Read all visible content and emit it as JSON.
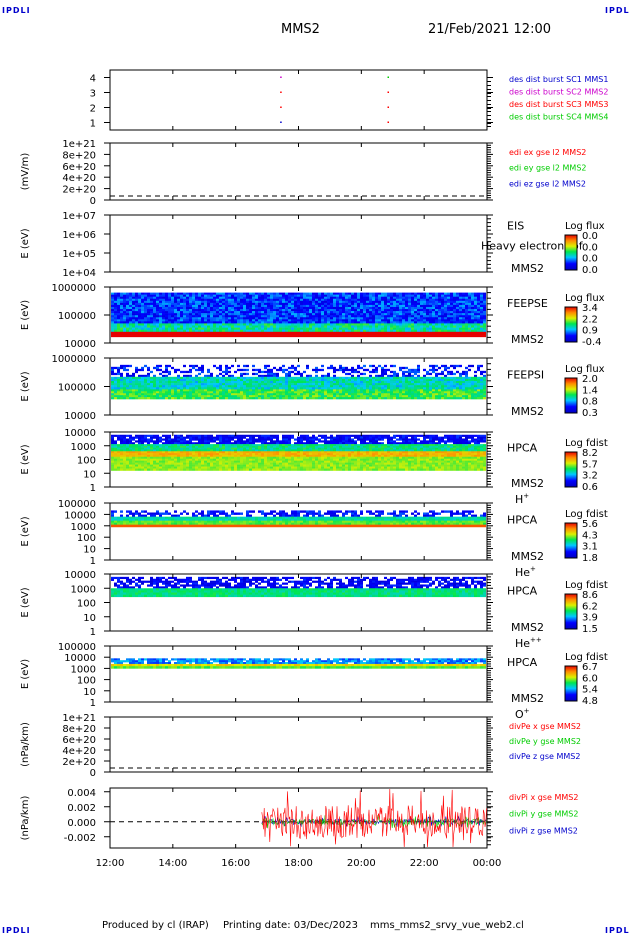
{
  "header": {
    "corner_label": "IPDLI",
    "spacecraft": "MMS2",
    "datetime": "21/Feb/2021 12:00"
  },
  "footer": {
    "produced_by": "Produced by cl (IRAP)",
    "printing_date": "Printing date: 03/Dec/2023",
    "script_name": "mms_mms2_srvy_vue_web2.cl"
  },
  "colors": {
    "red": "#ff0000",
    "green": "#00cc00",
    "blue": "#0000cc",
    "magenta": "#cc00cc"
  },
  "chart_data": [
    {
      "type": "scatter",
      "id": "des-dist-burst",
      "ylabel": "",
      "yticks": [
        "4",
        "3",
        "2",
        "1"
      ],
      "ylim": [
        0.5,
        4.5
      ],
      "legend": [
        {
          "label": "des dist burst SC1 MMS1",
          "color": "#0000cc"
        },
        {
          "label": "des dist burst SC2 MMS2",
          "color": "#cc00cc"
        },
        {
          "label": "des dist burst SC3 MMS3",
          "color": "#ff0000"
        },
        {
          "label": "des dist burst SC4 MMS4",
          "color": "#00cc00"
        }
      ],
      "points": [
        {
          "t": "17:25",
          "y": 4,
          "color": "#cc00cc"
        },
        {
          "t": "17:25",
          "y": 3,
          "color": "#ff0000"
        },
        {
          "t": "17:25",
          "y": 2,
          "color": "#ff0000"
        },
        {
          "t": "17:25",
          "y": 1,
          "color": "#0000cc"
        },
        {
          "t": "20:50",
          "y": 4,
          "color": "#00cc00"
        },
        {
          "t": "20:50",
          "y": 3,
          "color": "#ff0000"
        },
        {
          "t": "20:50",
          "y": 2,
          "color": "#ff0000"
        },
        {
          "t": "20:50",
          "y": 1,
          "color": "#ff0000"
        }
      ]
    },
    {
      "type": "line",
      "id": "edi-e",
      "ylabel": "(mV/m)",
      "yticks": [
        "1e+21",
        "8e+20",
        "6e+20",
        "4e+20",
        "2e+20",
        "0"
      ],
      "ylim": [
        0,
        1e+21
      ],
      "legend": [
        {
          "label": "edi ex gse l2 MMS2",
          "color": "#ff0000"
        },
        {
          "label": "edi ey gse l2 MMS2",
          "color": "#00cc00"
        },
        {
          "label": "edi ez gse l2 MMS2",
          "color": "#0000cc"
        }
      ],
      "zero_line": 0
    },
    {
      "type": "heatmap",
      "id": "eis",
      "ylabel": "E (eV)",
      "yticks": [
        "1e+07",
        "1e+06",
        "1e+05",
        "1e+04"
      ],
      "yscale": "log",
      "instrument": [
        "EIS",
        "MMS2"
      ],
      "overlay_text": "Heavy electron tof",
      "colorbar": {
        "title": "Log flux",
        "ticks": [
          "0.0",
          "0.0",
          "0.0",
          "0.0"
        ]
      }
    },
    {
      "type": "heatmap",
      "id": "feepse",
      "ylabel": "E (eV)",
      "yticks": [
        "1000000",
        "100000",
        "10000"
      ],
      "yscale": "log",
      "instrument": [
        "FEEPSE",
        "MMS2"
      ],
      "colorbar": {
        "title": "Log flux",
        "ticks": [
          "3.4",
          "2.2",
          "0.9",
          "-0.4"
        ]
      }
    },
    {
      "type": "heatmap",
      "id": "feepsi",
      "ylabel": "E (eV)",
      "yticks": [
        "1000000",
        "100000",
        "10000"
      ],
      "yscale": "log",
      "instrument": [
        "FEEPSI",
        "MMS2"
      ],
      "colorbar": {
        "title": "Log flux",
        "ticks": [
          "2.0",
          "1.4",
          "0.8",
          "0.3"
        ]
      }
    },
    {
      "type": "heatmap",
      "id": "hpca-h",
      "ylabel": "E (eV)",
      "yticks": [
        "10000",
        "1000",
        "100",
        "10",
        "1"
      ],
      "yscale": "log",
      "instrument": [
        "HPCA",
        "MMS2"
      ],
      "species": "H",
      "species_sup": "+",
      "colorbar": {
        "title": "Log fdist",
        "ticks": [
          "8.2",
          "5.7",
          "3.2",
          "0.6"
        ]
      }
    },
    {
      "type": "heatmap",
      "id": "hpca-he",
      "ylabel": "E (eV)",
      "yticks": [
        "100000",
        "10000",
        "1000",
        "100",
        "10",
        "1"
      ],
      "yscale": "log",
      "instrument": [
        "HPCA",
        "MMS2"
      ],
      "species": "He",
      "species_sup": "+",
      "colorbar": {
        "title": "Log fdist",
        "ticks": [
          "5.6",
          "4.3",
          "3.1",
          "1.8"
        ]
      }
    },
    {
      "type": "heatmap",
      "id": "hpca-hepp",
      "ylabel": "E (eV)",
      "yticks": [
        "10000",
        "1000",
        "100",
        "10",
        "1"
      ],
      "yscale": "log",
      "instrument": [
        "HPCA",
        "MMS2"
      ],
      "species": "He",
      "species_sup": "++",
      "colorbar": {
        "title": "Log fdist",
        "ticks": [
          "8.6",
          "6.2",
          "3.9",
          "1.5"
        ]
      }
    },
    {
      "type": "heatmap",
      "id": "hpca-o",
      "ylabel": "E (eV)",
      "yticks": [
        "100000",
        "10000",
        "1000",
        "100",
        "10",
        "1"
      ],
      "yscale": "log",
      "instrument": [
        "HPCA",
        "MMS2"
      ],
      "species": "O",
      "species_sup": "+",
      "colorbar": {
        "title": "Log fdist",
        "ticks": [
          "6.7",
          "6.0",
          "5.4",
          "4.8"
        ]
      }
    },
    {
      "type": "line",
      "id": "divpe",
      "ylabel": "(nPa/km)",
      "yticks": [
        "1e+21",
        "8e+20",
        "6e+20",
        "4e+20",
        "2e+20",
        "0"
      ],
      "ylim": [
        0,
        1e+21
      ],
      "legend": [
        {
          "label": "divPe x gse MMS2",
          "color": "#ff0000"
        },
        {
          "label": "divPe y gse MMS2",
          "color": "#00cc00"
        },
        {
          "label": "divPe z gse MMS2",
          "color": "#0000cc"
        }
      ],
      "zero_line": 0
    },
    {
      "type": "line",
      "id": "divpi",
      "ylabel": "(nPa/km)",
      "yticks": [
        "0.004",
        "0.002",
        "0.000",
        "-0.002"
      ],
      "ylim": [
        -0.0035,
        0.0045
      ],
      "data_start": "16:50",
      "legend": [
        {
          "label": "divPi x gse MMS2",
          "color": "#ff0000"
        },
        {
          "label": "divPi y gse MMS2",
          "color": "#00cc00"
        },
        {
          "label": "divPi z gse MMS2",
          "color": "#0000cc"
        }
      ],
      "zero_line": 0
    }
  ],
  "xaxis": {
    "ticks": [
      "12:00",
      "14:00",
      "16:00",
      "18:00",
      "20:00",
      "22:00",
      "00:00"
    ],
    "range_hours": [
      12,
      24
    ]
  }
}
